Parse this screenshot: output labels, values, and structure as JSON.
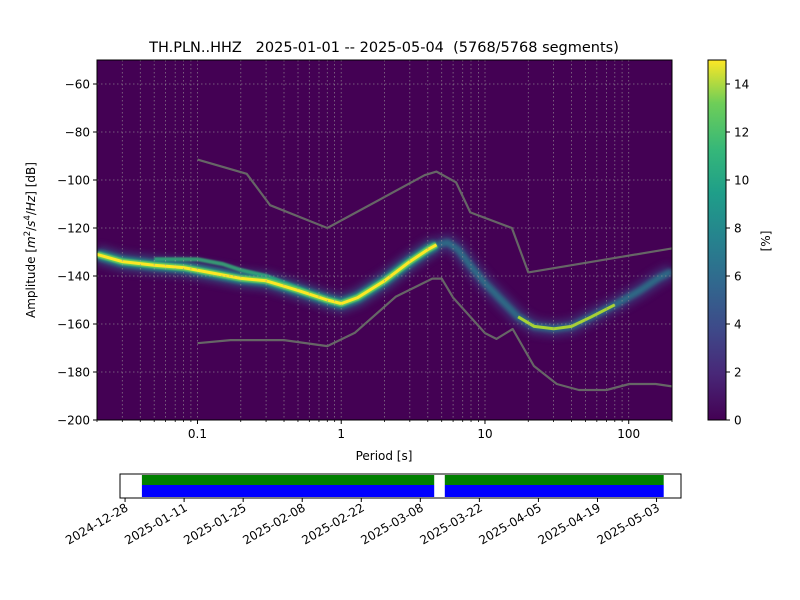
{
  "chart_data": {
    "type": "heatmap",
    "title": "TH.PLN..HHZ   2025-01-01 -- 2025-05-04  (5768/5768 segments)",
    "xlabel": "Period [s]",
    "ylabel_parts": [
      "Amplitude [",
      "m",
      "2",
      "/",
      "s",
      "4",
      "/",
      "Hz",
      "] [dB]"
    ],
    "x_scale": "log",
    "xlim": [
      0.02,
      200
    ],
    "ylim": [
      -200,
      -50
    ],
    "x_ticks": [
      0.1,
      1,
      10,
      100
    ],
    "x_tick_labels": [
      "0.1",
      "1",
      "10",
      "100"
    ],
    "y_ticks": [
      -200,
      -180,
      -160,
      -140,
      -120,
      -100,
      -80,
      -60
    ],
    "y_tick_labels": [
      "−200",
      "−180",
      "−160",
      "−140",
      "−120",
      "−100",
      "−80",
      "−60"
    ],
    "grid": true,
    "colormap": "viridis",
    "colorbar": {
      "label": "[%]",
      "min": 0,
      "max": 15,
      "ticks": [
        0,
        2,
        4,
        6,
        8,
        10,
        12,
        14
      ],
      "tick_labels": [
        "0",
        "2",
        "4",
        "6",
        "8",
        "10",
        "12",
        "14"
      ]
    },
    "mode_curve": [
      [
        0.02,
        -131
      ],
      [
        0.03,
        -134
      ],
      [
        0.05,
        -135.5
      ],
      [
        0.08,
        -136.5
      ],
      [
        0.12,
        -138.5
      ],
      [
        0.2,
        -141
      ],
      [
        0.3,
        -142
      ],
      [
        0.5,
        -146
      ],
      [
        0.8,
        -150
      ],
      [
        1.0,
        -151.5
      ],
      [
        1.3,
        -149
      ],
      [
        2.0,
        -142
      ],
      [
        3.0,
        -134
      ],
      [
        4.0,
        -129
      ],
      [
        4.6,
        -127
      ]
    ],
    "secondary_mode_curve": [
      [
        0.05,
        -133
      ],
      [
        0.1,
        -133
      ],
      [
        0.15,
        -135
      ],
      [
        0.2,
        -137.5
      ],
      [
        0.3,
        -140
      ],
      [
        0.45,
        -144
      ],
      [
        0.6,
        -147
      ]
    ],
    "fade_curve": [
      [
        4.6,
        -127
      ],
      [
        5.5,
        -126
      ],
      [
        6.5,
        -129
      ],
      [
        8,
        -136
      ],
      [
        10,
        -143
      ],
      [
        13,
        -150
      ],
      [
        17,
        -157
      ],
      [
        22,
        -161
      ],
      [
        30,
        -162
      ],
      [
        40,
        -161
      ],
      [
        55,
        -157
      ],
      [
        80,
        -152
      ],
      [
        120,
        -146
      ],
      [
        160,
        -141
      ],
      [
        200,
        -138
      ]
    ],
    "nhnm": [
      [
        0.1,
        -91.5
      ],
      [
        0.22,
        -97.4
      ],
      [
        0.32,
        -110.5
      ],
      [
        0.8,
        -120
      ],
      [
        3.8,
        -98
      ],
      [
        4.6,
        -96.5
      ],
      [
        6.3,
        -101
      ],
      [
        7.9,
        -113.5
      ],
      [
        15.4,
        -120
      ],
      [
        20,
        -138.5
      ],
      [
        200,
        -128.5
      ]
    ],
    "nlnm": [
      [
        0.1,
        -168
      ],
      [
        0.17,
        -166.7
      ],
      [
        0.4,
        -166.7
      ],
      [
        0.8,
        -169.2
      ],
      [
        1.24,
        -163.7
      ],
      [
        2.4,
        -148.6
      ],
      [
        4.3,
        -141.1
      ],
      [
        5.0,
        -141.1
      ],
      [
        6.0,
        -149
      ],
      [
        10,
        -163.8
      ],
      [
        12,
        -166.2
      ],
      [
        15.6,
        -162.1
      ],
      [
        21.9,
        -177.5
      ],
      [
        31.6,
        -185
      ],
      [
        45,
        -187.5
      ],
      [
        70,
        -187.5
      ],
      [
        101,
        -185
      ],
      [
        154,
        -185
      ],
      [
        200,
        -186
      ]
    ]
  },
  "timeline": {
    "tick_labels": [
      "2024-12-28",
      "2025-01-11",
      "2025-01-25",
      "2025-02-08",
      "2025-02-22",
      "2025-03-08",
      "2025-03-22",
      "2025-04-05",
      "2025-04-19",
      "2025-05-03"
    ],
    "tick_offsets_days": [
      -4,
      10,
      24,
      38,
      52,
      66,
      80,
      94,
      108,
      122
    ],
    "range_offsets_days": [
      -5.2,
      127.8
    ],
    "coverage_offsets_days": [
      [
        0,
        69.3
      ],
      [
        71.8,
        123.7
      ]
    ],
    "colors": {
      "top": "#008000",
      "bottom": "#0000ff",
      "mark": "#ff0000"
    }
  }
}
